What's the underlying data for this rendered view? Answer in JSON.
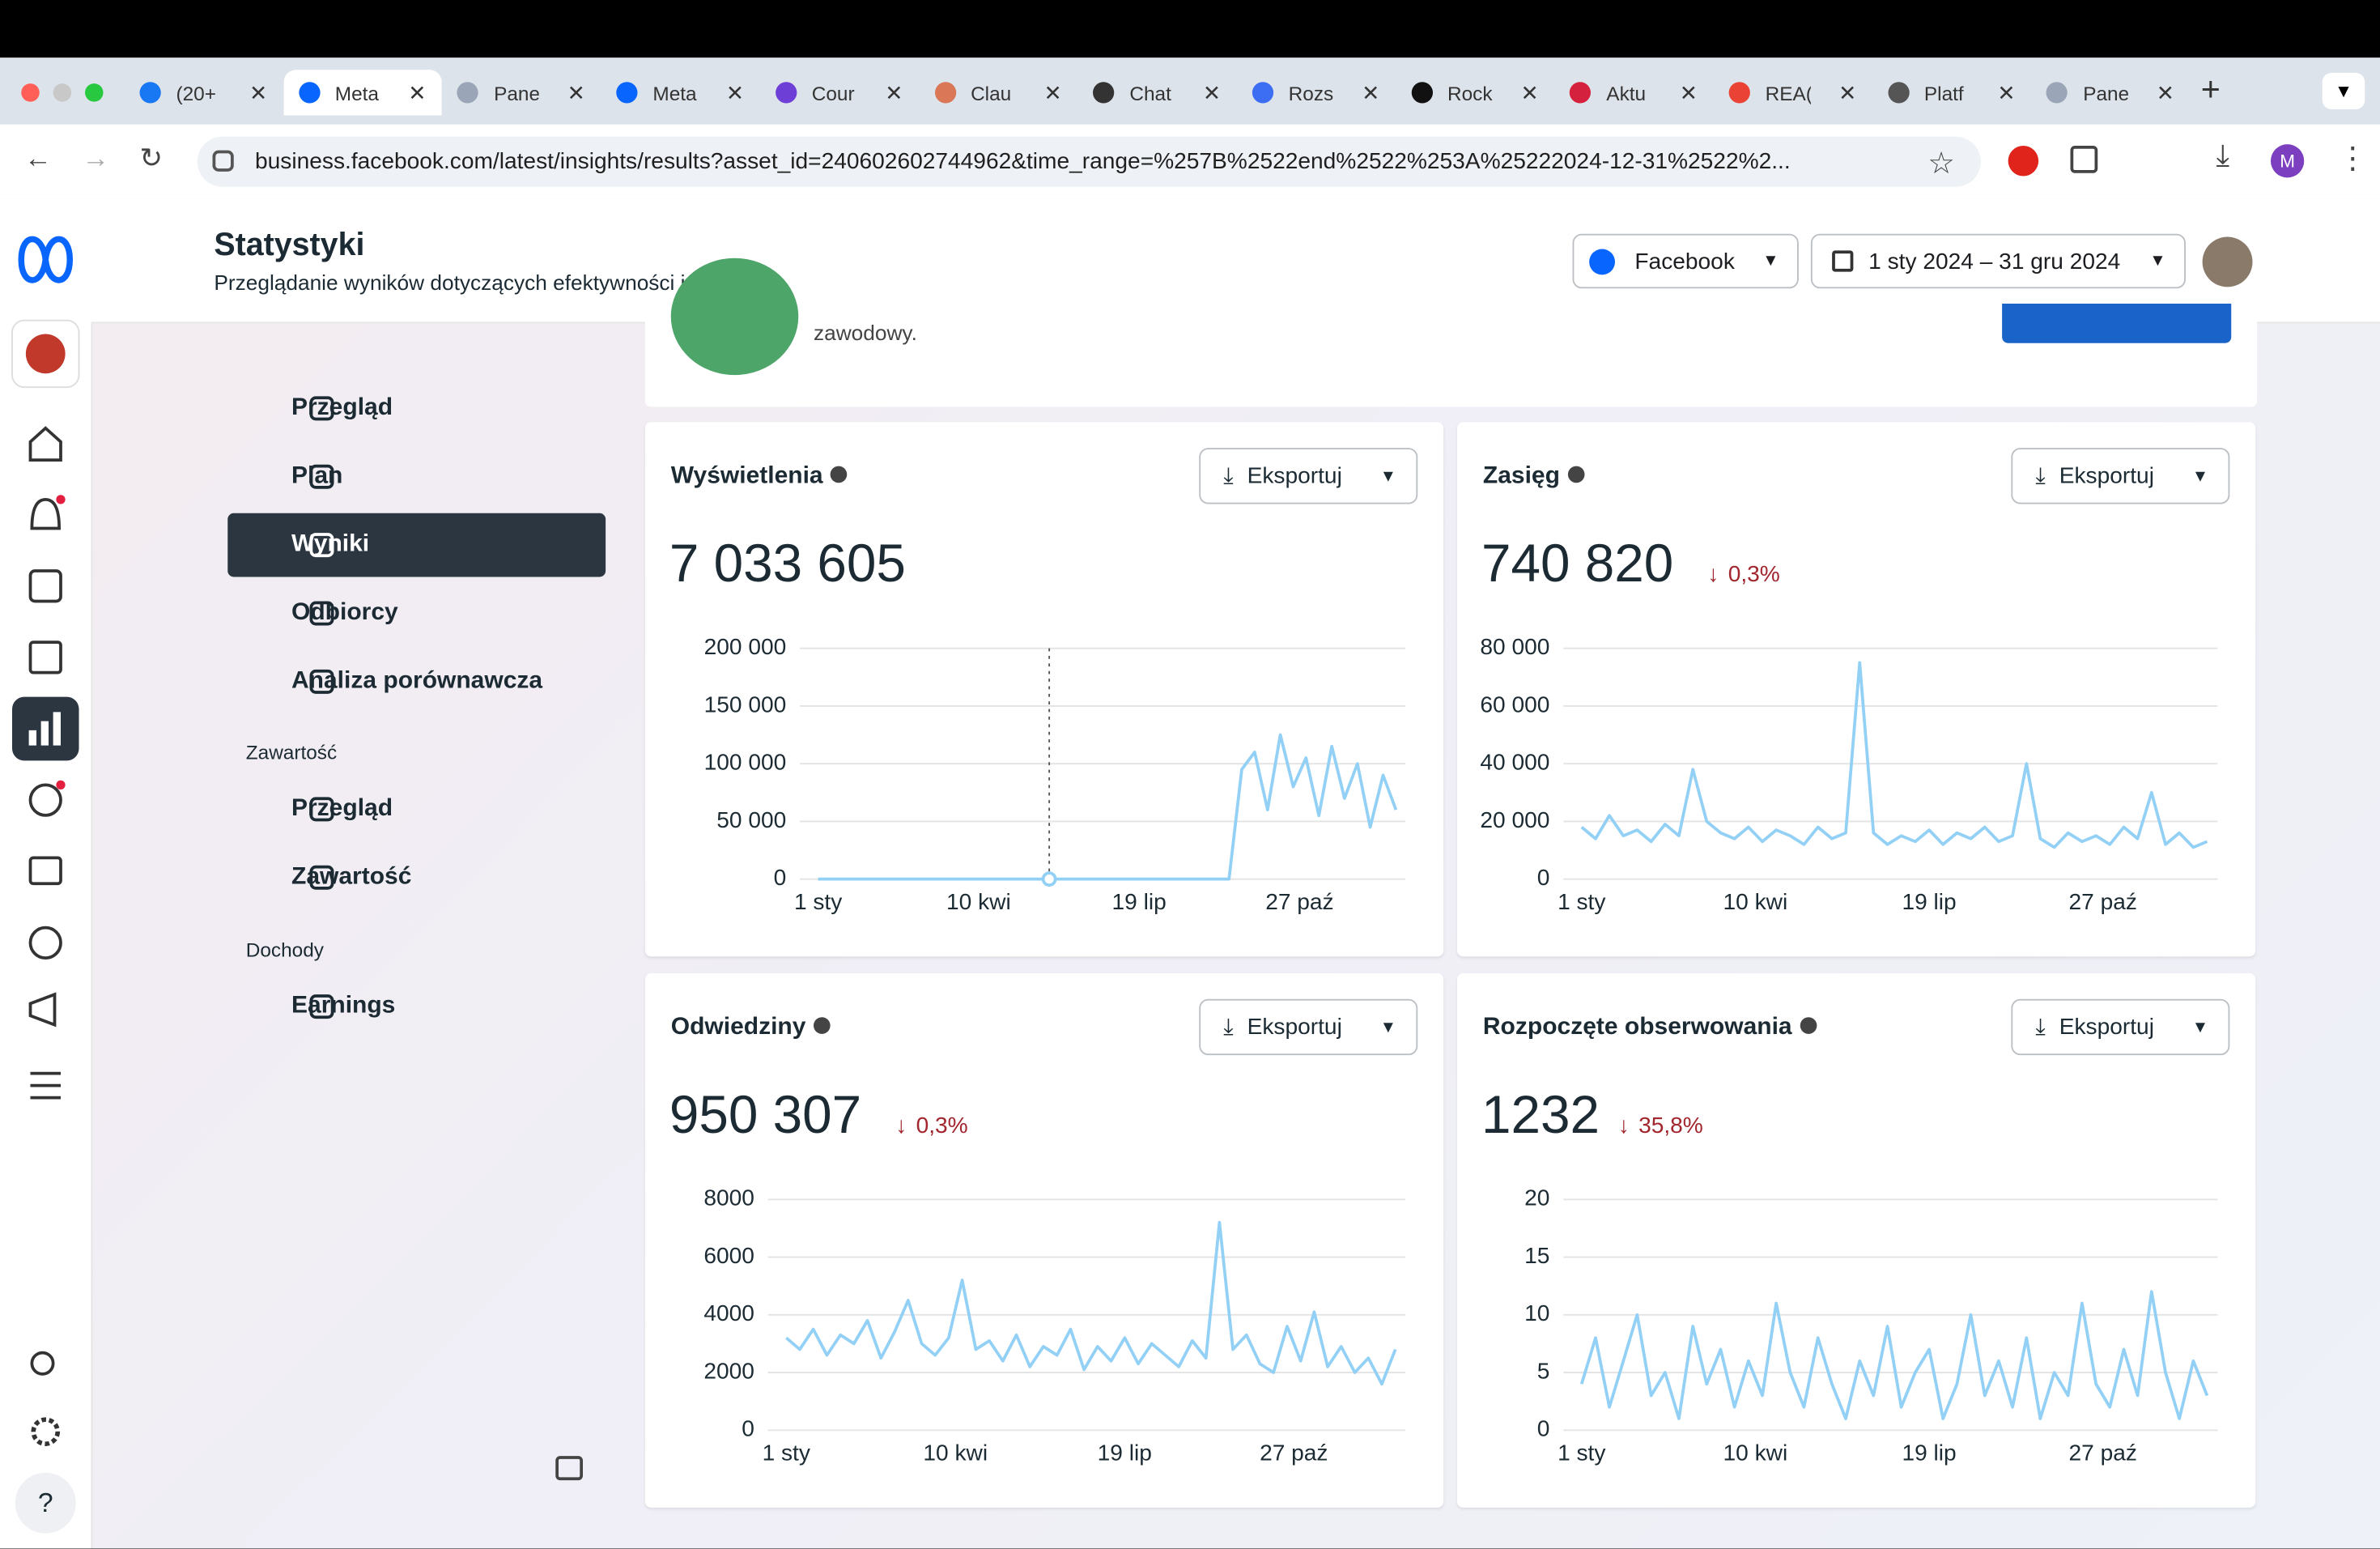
{
  "browser": {
    "tabs": [
      "(20+",
      "Meta",
      "Pane",
      "Meta",
      "Cour",
      "Clau",
      "Chat",
      "Rozs",
      "Rock",
      "Aktu",
      "REA(",
      "Platf",
      "Pane"
    ],
    "url": "business.facebook.com/latest/insights/results?asset_id=240602602744962&time_range=%257B%2522end%2522%253A%25222024-12-31%2522%2..."
  },
  "header": {
    "title": "Statystyki",
    "subtitle": "Przeglądanie wyników dotyczących efektywności i nie tylko.",
    "platform": "Facebook",
    "date_range": "1 sty 2024 – 31 gru 2024"
  },
  "nav": {
    "items": [
      "Przegląd",
      "Plan",
      "Wyniki",
      "Odbiorcy",
      "Analiza porównawcza"
    ],
    "content_section": "Zawartość",
    "content_items": [
      "Przegląd",
      "Zawartość"
    ],
    "income_section": "Dochody",
    "income_items": [
      "Earnings"
    ]
  },
  "banner": {
    "text": "zawodowy."
  },
  "chart_data": [
    {
      "type": "line",
      "title": "Wyświetlenia",
      "total": "7 033 605",
      "export": "Eksportuj",
      "color": "#93d0f5",
      "grid": true,
      "xlim": [
        0,
        366
      ],
      "ylim": [
        0,
        200000
      ],
      "yticks": [
        {
          "value": 0,
          "label": "0"
        },
        {
          "value": 50000,
          "label": "50 000"
        },
        {
          "value": 100000,
          "label": "100 000"
        },
        {
          "value": 150000,
          "label": "150 000"
        },
        {
          "value": 200000,
          "label": "200 000"
        }
      ],
      "xticks": [
        {
          "value": 0,
          "label": "1 sty"
        },
        {
          "value": 100,
          "label": "10 kwi"
        },
        {
          "value": 200,
          "label": "19 lip"
        },
        {
          "value": 300,
          "label": "27 paź"
        }
      ],
      "x": [
        0,
        8,
        16,
        24,
        32,
        40,
        48,
        56,
        64,
        72,
        80,
        88,
        96,
        104,
        112,
        120,
        128,
        136,
        144,
        152,
        160,
        168,
        176,
        184,
        192,
        200,
        208,
        216,
        224,
        232,
        240,
        248,
        256,
        264,
        272,
        280,
        288,
        296,
        304,
        312,
        320,
        328,
        336,
        344,
        352,
        360
      ],
      "values": [
        0,
        0,
        0,
        0,
        0,
        0,
        0,
        0,
        0,
        0,
        0,
        0,
        0,
        0,
        0,
        0,
        0,
        0,
        0,
        0,
        0,
        0,
        0,
        0,
        0,
        0,
        0,
        0,
        0,
        0,
        0,
        0,
        0,
        95000,
        110000,
        60000,
        125000,
        80000,
        105000,
        55000,
        115000,
        70000,
        100000,
        45000,
        90000,
        60000
      ]
    },
    {
      "type": "line",
      "title": "Zasięg",
      "total": "740 820",
      "change": "0,3%",
      "export": "Eksportuj",
      "color": "#93d0f5",
      "grid": true,
      "xlim": [
        0,
        366
      ],
      "ylim": [
        0,
        80000
      ],
      "yticks": [
        {
          "value": 0,
          "label": "0"
        },
        {
          "value": 20000,
          "label": "20 000"
        },
        {
          "value": 40000,
          "label": "40 000"
        },
        {
          "value": 60000,
          "label": "60 000"
        },
        {
          "value": 80000,
          "label": "80 000"
        }
      ],
      "xticks": [
        {
          "value": 0,
          "label": "1 sty"
        },
        {
          "value": 100,
          "label": "10 kwi"
        },
        {
          "value": 200,
          "label": "19 lip"
        },
        {
          "value": 300,
          "label": "27 paź"
        }
      ],
      "x": [
        0,
        8,
        16,
        24,
        32,
        40,
        48,
        56,
        64,
        72,
        80,
        88,
        96,
        104,
        112,
        120,
        128,
        136,
        144,
        152,
        160,
        168,
        176,
        184,
        192,
        200,
        208,
        216,
        224,
        232,
        240,
        248,
        256,
        264,
        272,
        280,
        288,
        296,
        304,
        312,
        320,
        328,
        336,
        344,
        352,
        360
      ],
      "values": [
        18000,
        14000,
        22000,
        15000,
        17000,
        13000,
        19000,
        15000,
        38000,
        20000,
        16000,
        14000,
        18000,
        13000,
        17000,
        15000,
        12000,
        18000,
        14000,
        16000,
        75000,
        16000,
        12000,
        15000,
        13000,
        17000,
        12000,
        16000,
        14000,
        18000,
        13000,
        15000,
        40000,
        14000,
        11000,
        16000,
        13000,
        15000,
        12000,
        18000,
        14000,
        30000,
        12000,
        16000,
        11000,
        13000
      ]
    },
    {
      "type": "line",
      "title": "Odwiedziny",
      "total": "950 307",
      "change": "0,3%",
      "export": "Eksportuj",
      "color": "#93d0f5",
      "grid": true,
      "xlim": [
        0,
        366
      ],
      "ylim": [
        0,
        8000
      ],
      "yticks": [
        0,
        2000,
        4000,
        6000,
        8000
      ],
      "xticks": [
        {
          "value": 0,
          "label": "1 sty"
        },
        {
          "value": 100,
          "label": "10 kwi"
        },
        {
          "value": 200,
          "label": "19 lip"
        },
        {
          "value": 300,
          "label": "27 paź"
        }
      ],
      "x": [
        0,
        8,
        16,
        24,
        32,
        40,
        48,
        56,
        64,
        72,
        80,
        88,
        96,
        104,
        112,
        120,
        128,
        136,
        144,
        152,
        160,
        168,
        176,
        184,
        192,
        200,
        208,
        216,
        224,
        232,
        240,
        248,
        256,
        264,
        272,
        280,
        288,
        296,
        304,
        312,
        320,
        328,
        336,
        344,
        352,
        360
      ],
      "values": [
        3200,
        2800,
        3500,
        2600,
        3300,
        3000,
        3800,
        2500,
        3400,
        4500,
        3000,
        2600,
        3200,
        5200,
        2800,
        3100,
        2400,
        3300,
        2200,
        2900,
        2600,
        3500,
        2100,
        2900,
        2400,
        3200,
        2300,
        3000,
        2600,
        2200,
        3100,
        2500,
        7200,
        2800,
        3300,
        2300,
        2000,
        3600,
        2400,
        4100,
        2200,
        2900,
        2000,
        2500,
        1600,
        2800
      ]
    },
    {
      "type": "line",
      "title": "Rozpoczęte obserwowania",
      "total": "1232",
      "change": "35,8%",
      "export": "Eksportuj",
      "color": "#93d0f5",
      "grid": true,
      "xlim": [
        0,
        366
      ],
      "ylim": [
        0,
        20
      ],
      "yticks": [
        0,
        5,
        10,
        15,
        20
      ],
      "xticks": [
        {
          "value": 0,
          "label": "1 sty"
        },
        {
          "value": 100,
          "label": "10 kwi"
        },
        {
          "value": 200,
          "label": "19 lip"
        },
        {
          "value": 300,
          "label": "27 paź"
        }
      ],
      "x": [
        0,
        8,
        16,
        24,
        32,
        40,
        48,
        56,
        64,
        72,
        80,
        88,
        96,
        104,
        112,
        120,
        128,
        136,
        144,
        152,
        160,
        168,
        176,
        184,
        192,
        200,
        208,
        216,
        224,
        232,
        240,
        248,
        256,
        264,
        272,
        280,
        288,
        296,
        304,
        312,
        320,
        328,
        336,
        344,
        352,
        360
      ],
      "values": [
        4,
        8,
        2,
        6,
        10,
        3,
        5,
        1,
        9,
        4,
        7,
        2,
        6,
        3,
        11,
        5,
        2,
        8,
        4,
        1,
        6,
        3,
        9,
        2,
        5,
        7,
        1,
        4,
        10,
        3,
        6,
        2,
        8,
        1,
        5,
        3,
        11,
        4,
        2,
        7,
        3,
        12,
        5,
        1,
        6,
        3
      ]
    }
  ]
}
